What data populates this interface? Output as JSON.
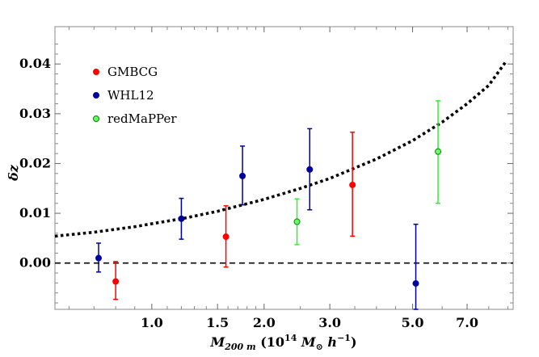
{
  "chart_data": {
    "type": "scatter",
    "xscale": "log",
    "xlim": [
      0.55,
      9.3
    ],
    "ylim": [
      -0.0093,
      0.0475
    ],
    "x_ticks": [
      1.0,
      1.5,
      2.0,
      3.0,
      5.0,
      7.0
    ],
    "x_tick_labels": [
      "1.0",
      "1.5",
      "2.0",
      "3.0",
      "5.0",
      "7.0"
    ],
    "y_ticks": [
      0.0,
      0.01,
      0.02,
      0.03,
      0.04
    ],
    "y_tick_labels": [
      "0.00",
      "0.01",
      "0.02",
      "0.03",
      "0.04"
    ],
    "xlabel": {
      "m": "M",
      "m_sub": "200 m",
      "open": " (10",
      "exp": "14",
      "mid": " M",
      "sun": "⊙",
      "h": " h",
      "hexp": "−1",
      "close": ")"
    },
    "ylabel": "δz",
    "legend_position": "top-left",
    "series": [
      {
        "name": "GMBCG",
        "color": "#ff0000",
        "marker_fill": "#ff0000",
        "bar_color": "#ff0000",
        "points": [
          {
            "x": 0.8,
            "y": -0.0037,
            "lo": -0.0073,
            "hi": 0.0003
          },
          {
            "x": 1.58,
            "y": 0.0053,
            "lo": -0.0008,
            "hi": 0.0115
          },
          {
            "x": 3.45,
            "y": 0.0157,
            "lo": 0.0054,
            "hi": 0.0263
          }
        ]
      },
      {
        "name": "WHL12",
        "color": "#0000a0",
        "marker_fill": "#0000a0",
        "bar_color": "#0000a0",
        "points": [
          {
            "x": 0.72,
            "y": 0.001,
            "lo": -0.0018,
            "hi": 0.004
          },
          {
            "x": 1.2,
            "y": 0.0089,
            "lo": 0.0048,
            "hi": 0.013
          },
          {
            "x": 1.75,
            "y": 0.0175,
            "lo": 0.0117,
            "hi": 0.0235
          },
          {
            "x": 2.65,
            "y": 0.0188,
            "lo": 0.0107,
            "hi": 0.027
          },
          {
            "x": 5.1,
            "y": -0.0041,
            "lo": -0.0093,
            "hi": 0.0078
          }
        ]
      },
      {
        "name": "redMaPPer",
        "color": "#008000",
        "marker_fill": "#66ff66",
        "bar_color": "#33ee33",
        "points": [
          {
            "x": 2.45,
            "y": 0.0083,
            "lo": 0.0037,
            "hi": 0.0129
          },
          {
            "x": 5.85,
            "y": 0.0224,
            "lo": 0.012,
            "hi": 0.0326
          }
        ]
      }
    ],
    "fit_curve": {
      "style": "dotted",
      "x": [
        0.55,
        0.7,
        0.9,
        1.0,
        1.2,
        1.5,
        2.0,
        2.5,
        3.0,
        4.0,
        5.0,
        6.0,
        7.0,
        8.0,
        8.9
      ],
      "y": [
        0.0054,
        0.0062,
        0.0073,
        0.0079,
        0.0089,
        0.0104,
        0.0128,
        0.015,
        0.017,
        0.0209,
        0.0246,
        0.0283,
        0.032,
        0.0357,
        0.0405
      ]
    },
    "reference_line": {
      "y": 0.0,
      "style": "dashed"
    }
  }
}
